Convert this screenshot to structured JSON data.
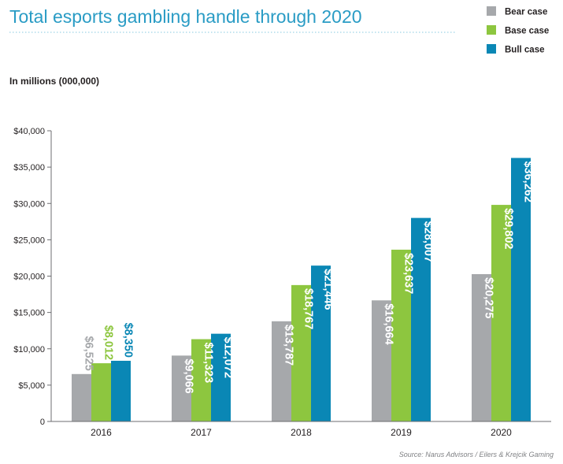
{
  "chart_data": {
    "type": "bar",
    "title": "Total esports gambling handle through 2020",
    "unit_note": "In millions (000,000)",
    "source": "Source: Narus Advisors / Eilers & Krejcik Gaming",
    "categories": [
      "2016",
      "2017",
      "2018",
      "2019",
      "2020"
    ],
    "series": [
      {
        "name": "Bear case",
        "color": "#a6a8ab",
        "values": [
          6525,
          9066,
          13787,
          16664,
          20275
        ],
        "labels": [
          "$6,525",
          "$9,066",
          "$13,787",
          "$16,664",
          "$20,275"
        ]
      },
      {
        "name": "Base case",
        "color": "#8dc63f",
        "values": [
          8012,
          11323,
          18767,
          23637,
          29802
        ],
        "labels": [
          "$8,012",
          "$11,323",
          "$18,767",
          "$23,637",
          "$29,802"
        ]
      },
      {
        "name": "Bull case",
        "color": "#0a87b5",
        "values": [
          8350,
          12072,
          21446,
          28007,
          36262
        ],
        "labels": [
          "$8,350",
          "$12,072",
          "$21,446",
          "$28,007",
          "$36,262"
        ]
      }
    ],
    "ylim": [
      0,
      40000
    ],
    "y_ticks": [
      0,
      5000,
      10000,
      15000,
      20000,
      25000,
      30000,
      35000,
      40000
    ],
    "y_tick_labels": [
      "0",
      "$5,000",
      "$10,000",
      "$15,000",
      "$20,000",
      "$25,000",
      "$30,000",
      "$35,000",
      "$40,000"
    ],
    "grid": false,
    "legend_position": "top-right"
  },
  "colors": {
    "title": "#2a9cc5",
    "text": "#231f20",
    "axis": "#6d6e71",
    "source": "#808285",
    "title_rule": "#9fd4e6"
  }
}
